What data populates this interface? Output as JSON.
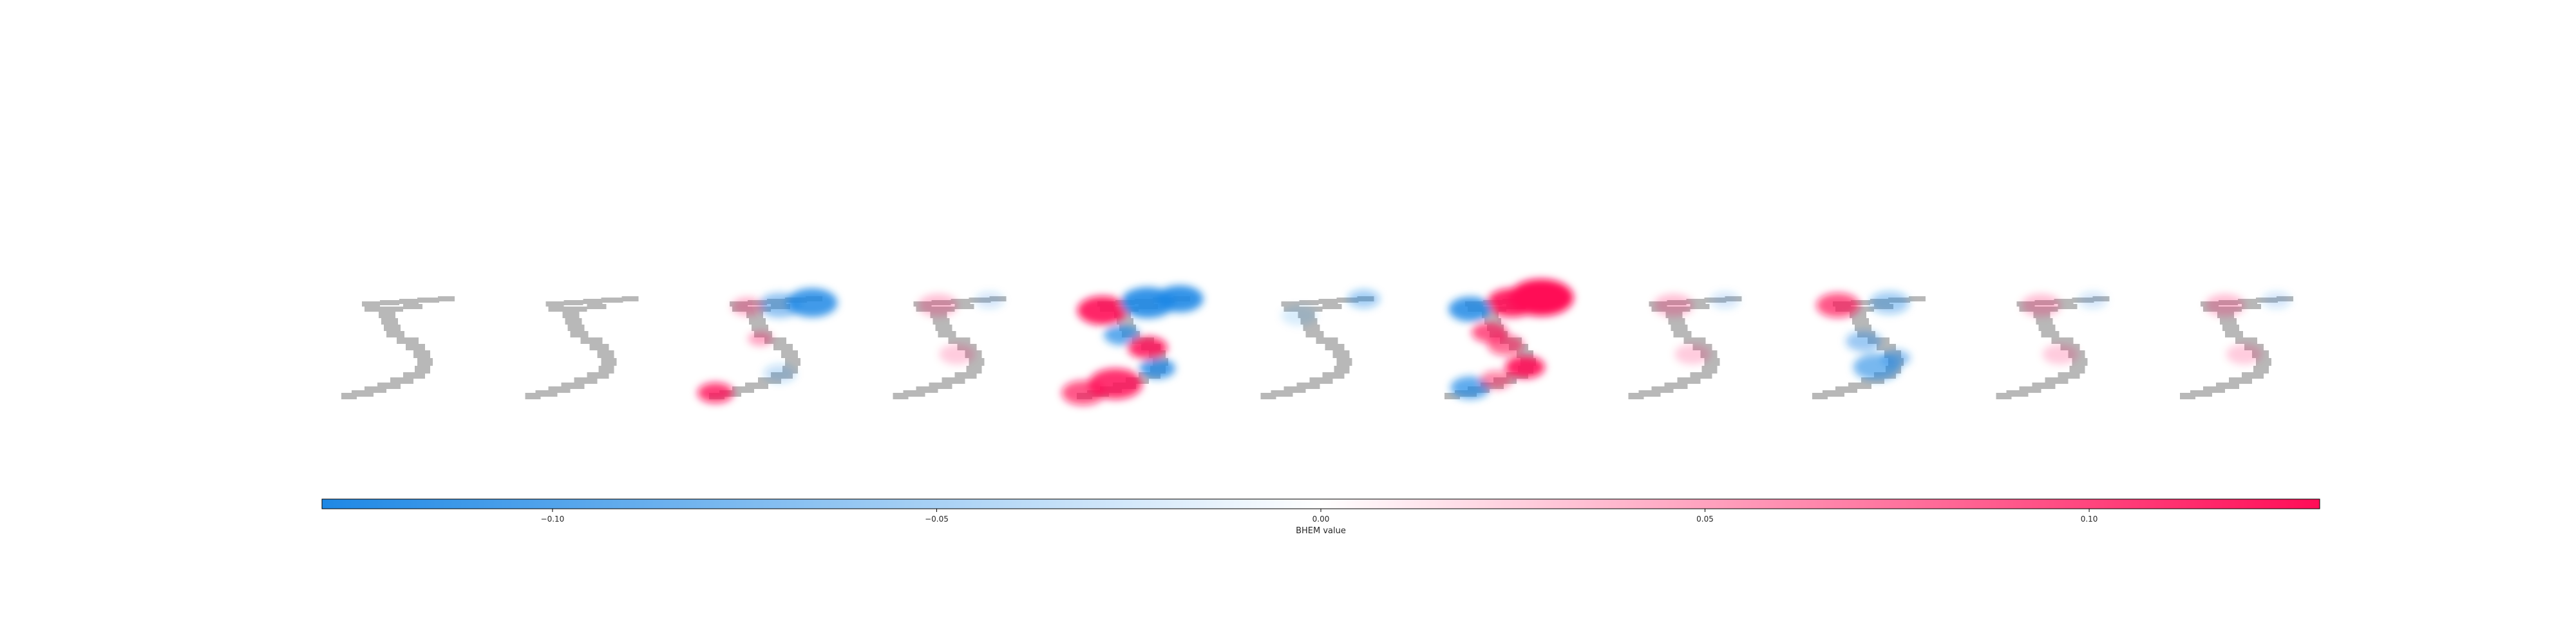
{
  "chart_data": {
    "type": "heatmap",
    "colorbar": {
      "label": "BHEM value",
      "vmin": -0.13,
      "vmax": 0.13,
      "colors": {
        "negative": "#1e88e5",
        "middle": "#ffffff",
        "positive": "#ff0d57"
      },
      "ticks": [
        {
          "value": -0.1,
          "label": "−0.10"
        },
        {
          "value": -0.05,
          "label": "−0.05"
        },
        {
          "value": 0.0,
          "label": "0.00"
        },
        {
          "value": 0.05,
          "label": "0.05"
        },
        {
          "value": 0.1,
          "label": "0.10"
        }
      ]
    },
    "digit_color": "#b8b8b8",
    "panels": [
      {
        "attribution": "none",
        "strength": 0.0
      },
      {
        "attribution": "none",
        "strength": 0.0
      },
      {
        "attribution": "top-negative-tail-positive",
        "strength": 0.55
      },
      {
        "attribution": "faint-mixed",
        "strength": 0.15
      },
      {
        "attribution": "strong-mixed",
        "strength": 0.85
      },
      {
        "attribution": "faint-negative",
        "strength": 0.15
      },
      {
        "attribution": "strong-top-positive",
        "strength": 1.0
      },
      {
        "attribution": "faint-mixed",
        "strength": 0.2
      },
      {
        "attribution": "moderate-mixed",
        "strength": 0.5
      },
      {
        "attribution": "faint-mixed",
        "strength": 0.15
      },
      {
        "attribution": "faint-mixed",
        "strength": 0.15
      }
    ]
  }
}
